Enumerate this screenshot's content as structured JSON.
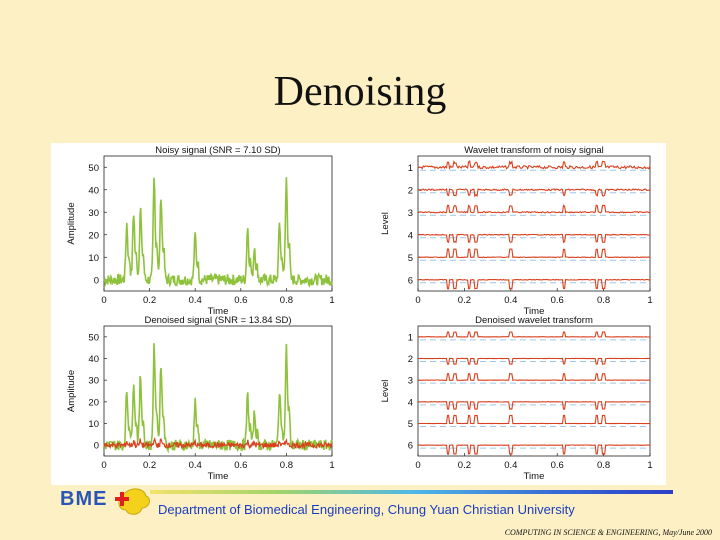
{
  "slide": {
    "title": "Denoising",
    "logo_text": "BME",
    "department": "Department of Biomedical Engineering, Chung Yuan Christian University",
    "citation": "COMPUTING IN SCIENCE & ENGINEERING, May/June 2000"
  },
  "colors": {
    "noisy_signal": "#8fc23c",
    "denoised_overlay": "#d8401e",
    "wavelet": "#d8401e",
    "guide_lines": "#9ec6e8"
  },
  "chart_data": [
    {
      "type": "line",
      "title": "Noisy signal (SNR = 7.10 SD)",
      "xlabel": "Time",
      "ylabel": "Amplitude",
      "xlim": [
        0,
        1
      ],
      "ylim": [
        -5,
        55
      ],
      "xticks": [
        "0",
        "0.2",
        "0.4",
        "0.6",
        "0.8",
        "1"
      ],
      "yticks": [
        "0",
        "10",
        "20",
        "30",
        "40",
        "50"
      ],
      "series": [
        {
          "peaks": [
            [
              0.1,
              25
            ],
            [
              0.13,
              30
            ],
            [
              0.16,
              32
            ],
            [
              0.22,
              45
            ],
            [
              0.25,
              38
            ],
            [
              0.4,
              20
            ],
            [
              0.63,
              23
            ],
            [
              0.66,
              15
            ],
            [
              0.77,
              25
            ],
            [
              0.8,
              45
            ]
          ],
          "baseline": 0
        }
      ]
    },
    {
      "type": "line",
      "title": "Wavelet transform of noisy signal",
      "xlabel": "Time",
      "ylabel": "Level",
      "xlim": [
        0,
        1
      ],
      "ylim": [
        0.5,
        6.5
      ],
      "xticks": [
        "0",
        "0.2",
        "0.4",
        "0.6",
        "0.8",
        "1"
      ],
      "yticks": [
        "1",
        "2",
        "3",
        "4",
        "5",
        "6"
      ],
      "levels": [
        1,
        2,
        3,
        4,
        5,
        6
      ]
    },
    {
      "type": "line",
      "title": "Denoised signal (SNR = 13.84 SD)",
      "xlabel": "Time",
      "ylabel": "Amplitude",
      "xlim": [
        0,
        1
      ],
      "ylim": [
        -5,
        55
      ],
      "xticks": [
        "0",
        "0.2",
        "0.4",
        "0.6",
        "0.8",
        "1"
      ],
      "yticks": [
        "0",
        "10",
        "20",
        "30",
        "40",
        "50"
      ],
      "series": [
        {
          "peaks": [
            [
              0.1,
              25
            ],
            [
              0.13,
              30
            ],
            [
              0.16,
              32
            ],
            [
              0.22,
              45
            ],
            [
              0.25,
              38
            ],
            [
              0.4,
              20
            ],
            [
              0.63,
              23
            ],
            [
              0.66,
              15
            ],
            [
              0.77,
              25
            ],
            [
              0.8,
              45
            ]
          ],
          "baseline": 0
        },
        {
          "peaks": [
            [
              0.1,
              22
            ],
            [
              0.13,
              26
            ],
            [
              0.16,
              28
            ],
            [
              0.22,
              40
            ],
            [
              0.25,
              34
            ],
            [
              0.4,
              18
            ],
            [
              0.63,
              20
            ],
            [
              0.66,
              13
            ],
            [
              0.77,
              22
            ],
            [
              0.8,
              40
            ]
          ],
          "baseline": 0
        }
      ]
    },
    {
      "type": "line",
      "title": "Denoised wavelet transform",
      "xlabel": "Time",
      "ylabel": "Level",
      "xlim": [
        0,
        1
      ],
      "ylim": [
        0.5,
        6.5
      ],
      "xticks": [
        "0",
        "0.2",
        "0.4",
        "0.6",
        "0.8",
        "1"
      ],
      "yticks": [
        "1",
        "2",
        "3",
        "4",
        "5",
        "6"
      ],
      "levels": [
        1,
        2,
        3,
        4,
        5,
        6
      ]
    }
  ]
}
